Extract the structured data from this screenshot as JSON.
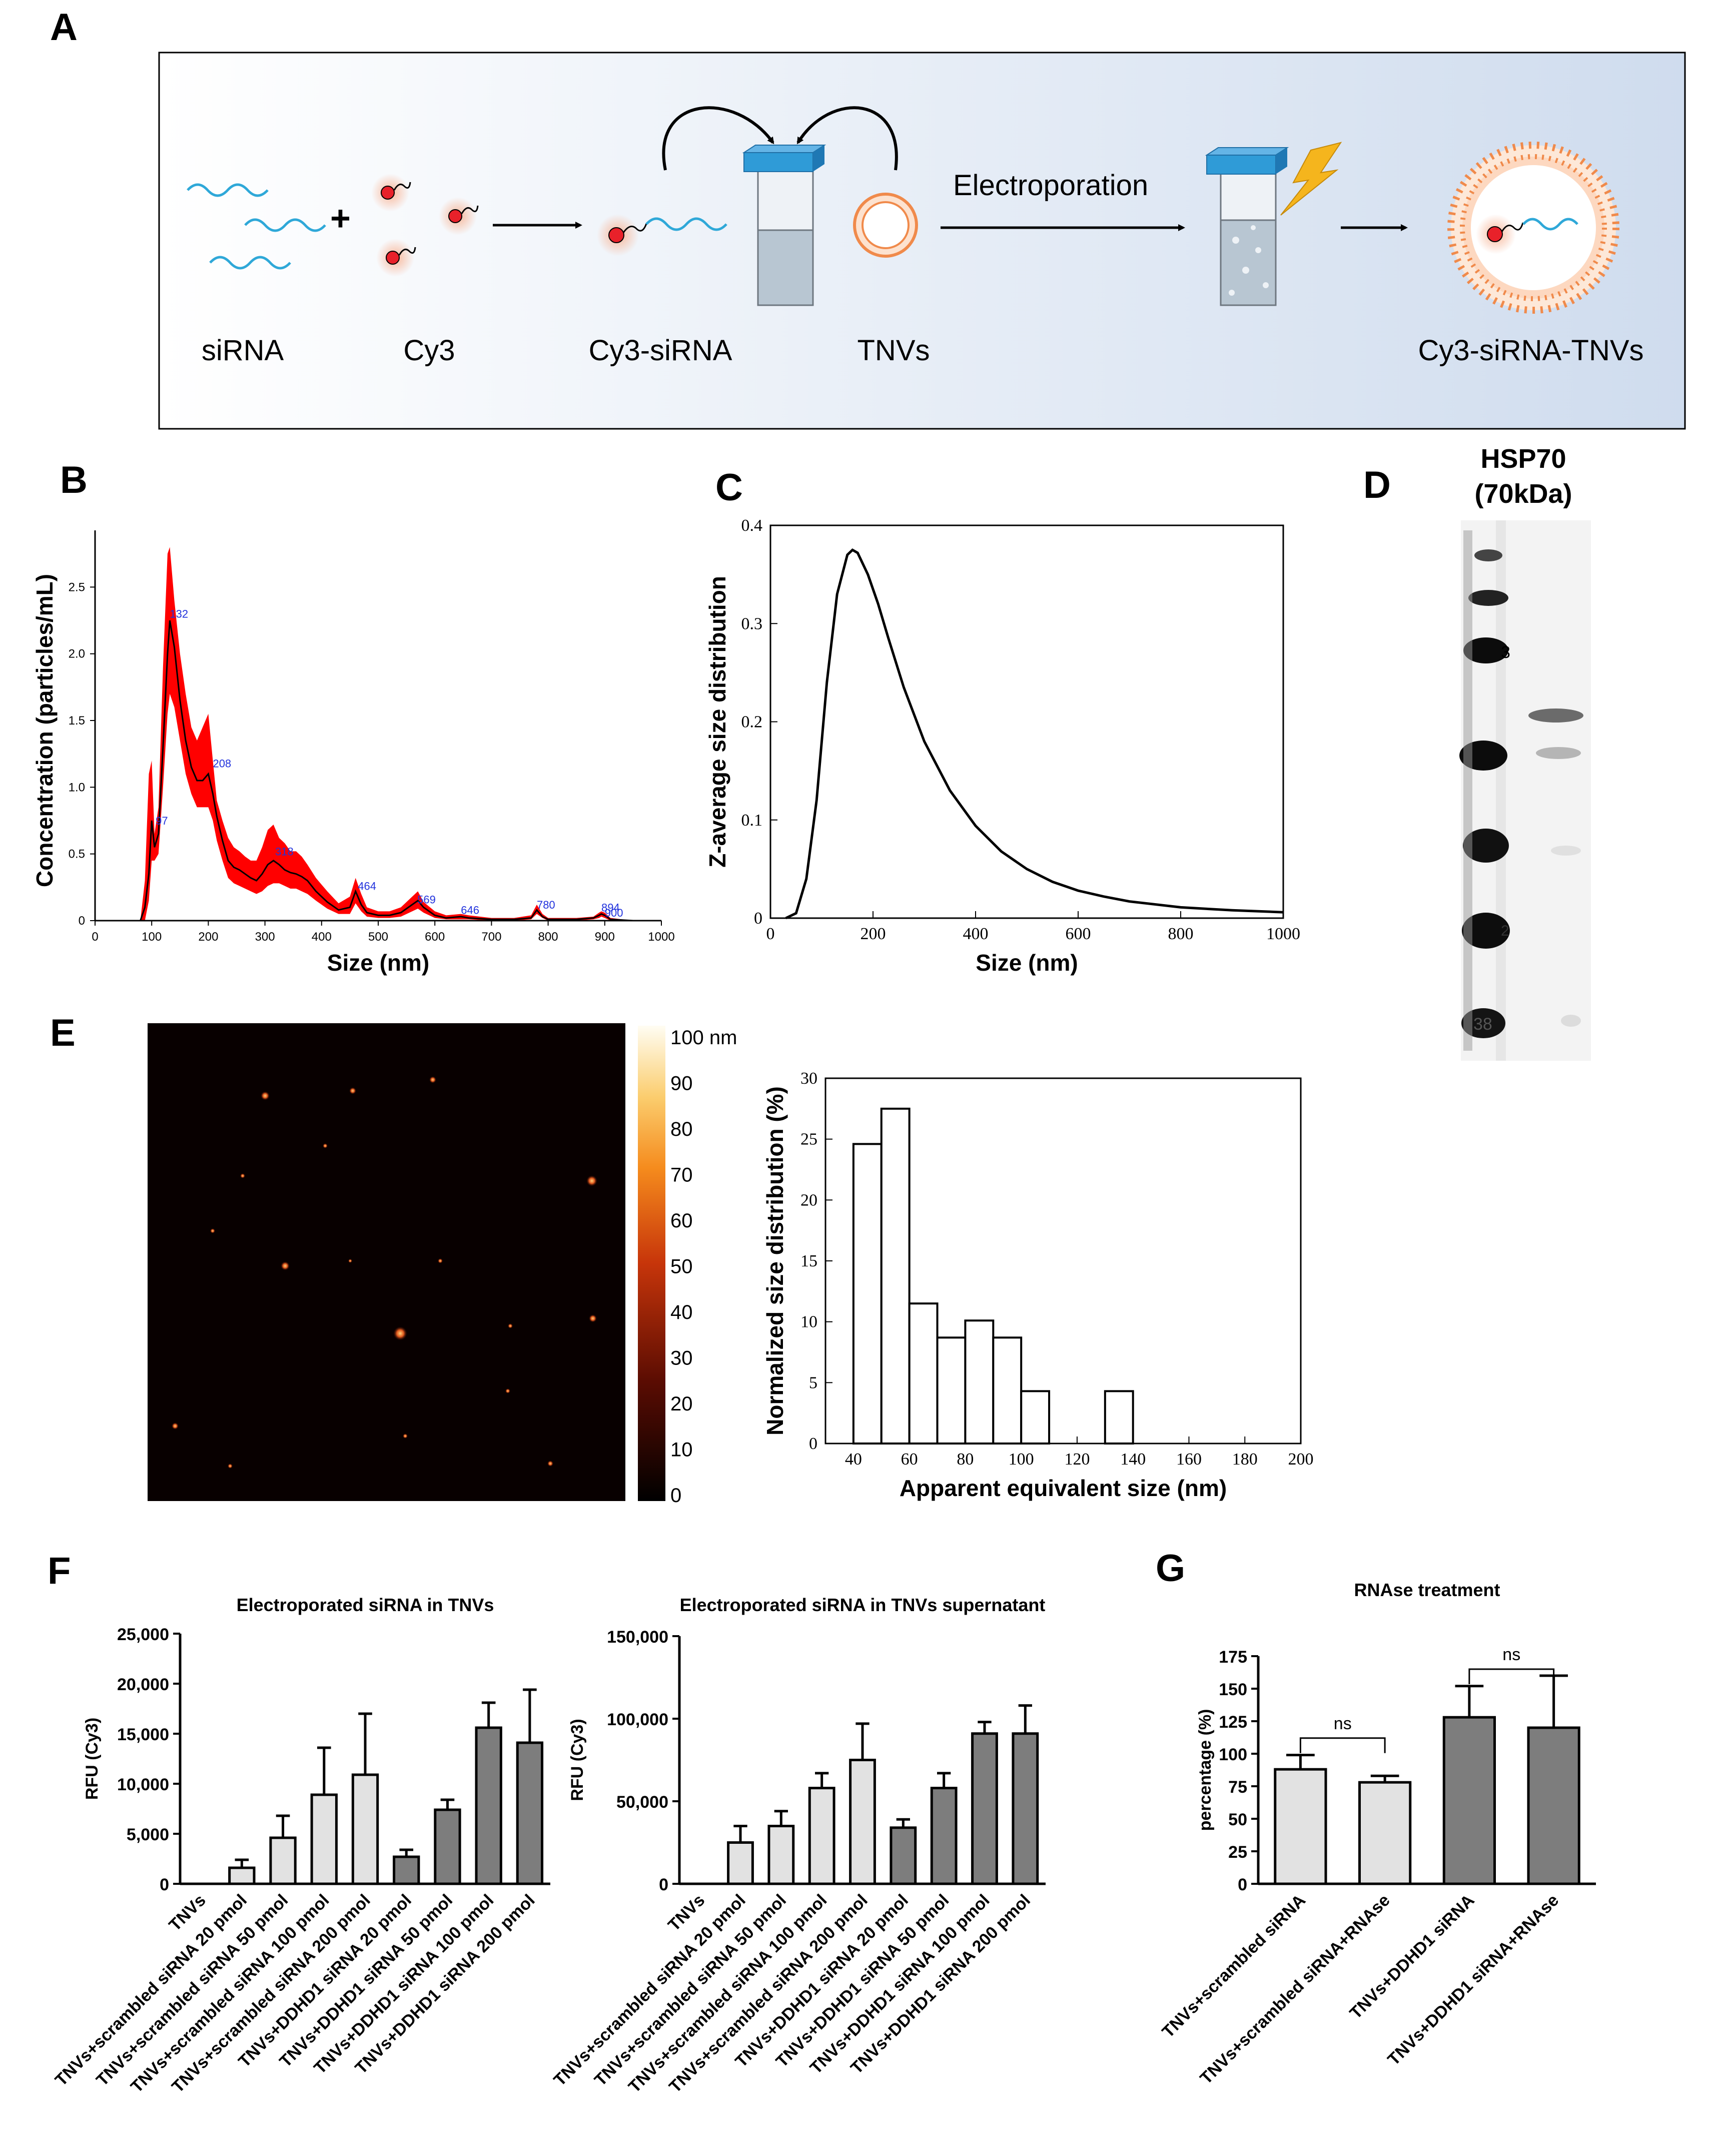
{
  "panels": {
    "A": "A",
    "B": "B",
    "C": "C",
    "D": "D",
    "E": "E",
    "F": "F",
    "G": "G"
  },
  "schematic": {
    "labels": [
      "siRNA",
      "Cy3",
      "Cy3-siRNA",
      "TNVs",
      "Cy3-siRNA-TNVs"
    ],
    "step_label": "Electroporation",
    "plus": "+",
    "colors": {
      "background_start": "#ffffff",
      "background_end": "#cfdcee",
      "siRNA": "#2fa8d8",
      "dye": "#e8212a",
      "glow": "#f7b79a",
      "cap": "#2f9bd7",
      "vesicle": "#f08a4b",
      "bolt": "#f5b51d"
    }
  },
  "western_blot": {
    "title": "HSP70",
    "subtitle": "(70kDa)",
    "ladder_marks": [
      "3",
      "2",
      "38"
    ]
  },
  "afm_colorbar": {
    "ticks": [
      "100 nm",
      "90",
      "80",
      "70",
      "60",
      "50",
      "40",
      "30",
      "20",
      "10",
      "0"
    ]
  },
  "chart_data": [
    {
      "id": "B",
      "type": "line",
      "xlabel": "Size (nm)",
      "ylabel": "Concentration (particles/mL)",
      "xlim": [
        0,
        1000
      ],
      "ylim": [
        0,
        2.85
      ],
      "xticks": [
        "0",
        "100",
        "200",
        "300",
        "400",
        "500",
        "600",
        "700",
        "800",
        "900",
        "1000"
      ],
      "yticks": [
        "0",
        "0.5",
        "1.0",
        "1.5",
        "2.0",
        "2.5"
      ],
      "series": [
        {
          "role": "mean",
          "color": "#000000",
          "x": [
            0,
            80,
            88,
            95,
            100,
            105,
            112,
            120,
            128,
            132,
            140,
            150,
            160,
            170,
            180,
            190,
            200,
            208,
            215,
            225,
            235,
            245,
            255,
            265,
            275,
            285,
            295,
            305,
            315,
            325,
            335,
            345,
            355,
            365,
            375,
            390,
            410,
            430,
            450,
            460,
            470,
            480,
            500,
            520,
            540,
            560,
            570,
            580,
            600,
            620,
            646,
            660,
            700,
            740,
            770,
            780,
            790,
            800,
            850,
            880,
            890,
            894,
            900,
            910,
            950,
            1000
          ],
          "y": [
            0,
            0,
            0.1,
            0.35,
            0.75,
            0.55,
            0.65,
            1.3,
            2.0,
            2.25,
            2.05,
            1.65,
            1.35,
            1.15,
            1.05,
            1.05,
            1.1,
            0.95,
            0.78,
            0.6,
            0.45,
            0.4,
            0.38,
            0.35,
            0.32,
            0.3,
            0.35,
            0.42,
            0.45,
            0.42,
            0.38,
            0.36,
            0.35,
            0.33,
            0.3,
            0.22,
            0.14,
            0.08,
            0.1,
            0.22,
            0.12,
            0.06,
            0.04,
            0.04,
            0.06,
            0.12,
            0.15,
            0.1,
            0.04,
            0.02,
            0.03,
            0.02,
            0.01,
            0.01,
            0.02,
            0.08,
            0.03,
            0.01,
            0.01,
            0.02,
            0.04,
            0.05,
            0.04,
            0.01,
            0.0,
            0.0
          ]
        },
        {
          "role": "upper",
          "color": "#ff0000",
          "x": [
            0,
            80,
            88,
            95,
            100,
            105,
            112,
            120,
            128,
            132,
            140,
            150,
            160,
            170,
            180,
            190,
            200,
            208,
            215,
            225,
            235,
            245,
            255,
            265,
            275,
            285,
            295,
            305,
            315,
            325,
            335,
            345,
            355,
            365,
            375,
            390,
            410,
            430,
            450,
            460,
            470,
            480,
            500,
            520,
            540,
            560,
            570,
            580,
            600,
            620,
            646,
            660,
            700,
            740,
            770,
            780,
            790,
            800,
            850,
            880,
            890,
            894,
            900,
            910,
            950,
            1000
          ],
          "y": [
            0,
            0,
            0.3,
            1.1,
            1.2,
            0.65,
            0.85,
            1.9,
            2.75,
            2.8,
            2.4,
            2.0,
            1.7,
            1.45,
            1.35,
            1.45,
            1.55,
            1.2,
            0.9,
            0.75,
            0.62,
            0.55,
            0.52,
            0.48,
            0.45,
            0.45,
            0.55,
            0.68,
            0.72,
            0.62,
            0.58,
            0.52,
            0.52,
            0.48,
            0.42,
            0.32,
            0.22,
            0.13,
            0.18,
            0.32,
            0.2,
            0.1,
            0.07,
            0.07,
            0.1,
            0.18,
            0.22,
            0.14,
            0.07,
            0.04,
            0.05,
            0.04,
            0.02,
            0.02,
            0.04,
            0.12,
            0.05,
            0.02,
            0.02,
            0.03,
            0.06,
            0.07,
            0.06,
            0.02,
            0.0,
            0.0
          ]
        },
        {
          "role": "lower",
          "color": "#ff0000",
          "x": [
            0,
            80,
            88,
            95,
            100,
            105,
            112,
            120,
            128,
            132,
            140,
            150,
            160,
            170,
            180,
            190,
            200,
            208,
            215,
            225,
            235,
            245,
            255,
            265,
            275,
            285,
            295,
            305,
            315,
            325,
            335,
            345,
            355,
            365,
            375,
            390,
            410,
            430,
            450,
            460,
            470,
            480,
            500,
            520,
            540,
            560,
            570,
            580,
            600,
            620,
            646,
            660,
            700,
            740,
            770,
            780,
            790,
            800,
            850,
            880,
            890,
            894,
            900,
            910,
            950,
            1000
          ],
          "y": [
            0,
            0,
            0.0,
            0.15,
            0.45,
            0.45,
            0.5,
            1.0,
            1.55,
            1.7,
            1.6,
            1.35,
            1.1,
            0.95,
            0.85,
            0.85,
            0.85,
            0.75,
            0.6,
            0.45,
            0.32,
            0.28,
            0.26,
            0.24,
            0.22,
            0.2,
            0.22,
            0.26,
            0.28,
            0.28,
            0.26,
            0.24,
            0.24,
            0.22,
            0.2,
            0.15,
            0.09,
            0.05,
            0.05,
            0.13,
            0.07,
            0.03,
            0.02,
            0.02,
            0.03,
            0.07,
            0.09,
            0.06,
            0.02,
            0.01,
            0.01,
            0.01,
            0.0,
            0.0,
            0.01,
            0.05,
            0.02,
            0.0,
            0.0,
            0.01,
            0.02,
            0.03,
            0.02,
            0.0,
            0.0,
            0.0
          ]
        }
      ],
      "annotations": [
        {
          "x": 107,
          "y": 0.72,
          "text": "97"
        },
        {
          "x": 132,
          "y": 2.27,
          "text": "132"
        },
        {
          "x": 208,
          "y": 1.15,
          "text": "208"
        },
        {
          "x": 318,
          "y": 0.49,
          "text": "318"
        },
        {
          "x": 464,
          "y": 0.23,
          "text": "464"
        },
        {
          "x": 569,
          "y": 0.13,
          "text": "569"
        },
        {
          "x": 646,
          "y": 0.05,
          "text": "646"
        },
        {
          "x": 780,
          "y": 0.09,
          "text": "780"
        },
        {
          "x": 894,
          "y": 0.07,
          "text": "894"
        },
        {
          "x": 900,
          "y": 0.03,
          "text": "900"
        }
      ]
    },
    {
      "id": "C",
      "type": "line",
      "xlabel": "Size (nm)",
      "ylabel": "Z-average size distribution",
      "xlim": [
        0,
        1000
      ],
      "ylim": [
        0,
        0.4
      ],
      "xticks": [
        "0",
        "200",
        "400",
        "600",
        "800",
        "1000"
      ],
      "yticks": [
        "0",
        "0.1",
        "0.2",
        "0.3",
        "0.4"
      ],
      "x": [
        30,
        50,
        70,
        90,
        110,
        130,
        150,
        160,
        170,
        190,
        210,
        230,
        260,
        300,
        350,
        400,
        450,
        500,
        550,
        600,
        650,
        700,
        800,
        900,
        1000
      ],
      "y": [
        0.0,
        0.005,
        0.04,
        0.12,
        0.24,
        0.33,
        0.37,
        0.375,
        0.372,
        0.35,
        0.32,
        0.285,
        0.235,
        0.18,
        0.13,
        0.094,
        0.068,
        0.05,
        0.037,
        0.028,
        0.022,
        0.017,
        0.011,
        0.008,
        0.006
      ]
    },
    {
      "id": "E-hist",
      "type": "bar",
      "xlabel": "Apparent equivalent size (nm)",
      "ylabel": "Normalized size distribution (%)",
      "xlim": [
        30,
        200
      ],
      "ylim": [
        0,
        30
      ],
      "xticks": [
        "40",
        "60",
        "80",
        "100",
        "120",
        "140",
        "160",
        "180",
        "200"
      ],
      "yticks": [
        "0",
        "5",
        "10",
        "15",
        "20",
        "25",
        "30"
      ],
      "bin_edges": [
        40,
        50,
        60,
        70,
        80,
        90,
        100,
        110,
        120,
        130,
        140
      ],
      "values": [
        24.6,
        27.5,
        11.5,
        8.7,
        10.1,
        8.7,
        4.3,
        0,
        0,
        4.3
      ]
    },
    {
      "id": "F-left",
      "type": "bar",
      "title": "Electroporated siRNA in TNVs",
      "ylabel": "RFU (Cy3)",
      "ylim": [
        0,
        25000
      ],
      "yticks": [
        "0",
        "5,000",
        "10,000",
        "15,000",
        "20,000",
        "25,000"
      ],
      "categories": [
        "TNVs",
        "TNVs+scrambled siRNA 20 pmol",
        "TNVs+scrambled siRNA 50 pmol",
        "TNVs+scrambled siRNA 100 pmol",
        "TNVs+scrambled siRNA  200 pmol",
        "TNVs+DDHD1 siRNA 20 pmol",
        "TNVs+DDHD1 siRNA 50 pmol",
        "TNVs+DDHD1 siRNA 100 pmol",
        "TNVs+DDHD1 siRNA  200 pmol"
      ],
      "values": [
        0,
        1600,
        4600,
        8900,
        10900,
        2700,
        7400,
        15600,
        14100
      ],
      "errors": [
        0,
        800,
        2200,
        4700,
        6100,
        700,
        1000,
        2500,
        5300
      ],
      "colors": [
        "#e2e2e2",
        "#e2e2e2",
        "#e2e2e2",
        "#e2e2e2",
        "#e2e2e2",
        "#7d7d7d",
        "#7d7d7d",
        "#7d7d7d",
        "#7d7d7d"
      ]
    },
    {
      "id": "F-right",
      "type": "bar",
      "title": "Electroporated siRNA in TNVs supernatant",
      "ylabel": "RFU (Cy3)",
      "ylim": [
        0,
        150000
      ],
      "yticks": [
        "0",
        "50,000",
        "100,000",
        "150,000"
      ],
      "categories": [
        "TNVs",
        "TNVs+scrambled siRNA 20 pmol",
        "TNVs+scrambled siRNA 50 pmol",
        "TNVs+scrambled siRNA 100 pmol",
        "TNVs+scrambled siRNA 200 pmol",
        "TNVs+DDHD1 siRNA 20 pmol",
        "TNVs+DDHD1 siRNA 50 pmol",
        "TNVs+DDHD1 siRNA 100 pmol",
        "TNVs+DDHD1 siRNA 200 pmol"
      ],
      "values": [
        0,
        25000,
        35000,
        58000,
        75000,
        34000,
        58000,
        91000,
        91000
      ],
      "errors": [
        0,
        10000,
        9000,
        9000,
        22000,
        5000,
        9000,
        7000,
        17000
      ],
      "colors": [
        "#e2e2e2",
        "#e2e2e2",
        "#e2e2e2",
        "#e2e2e2",
        "#e2e2e2",
        "#7d7d7d",
        "#7d7d7d",
        "#7d7d7d",
        "#7d7d7d"
      ]
    },
    {
      "id": "G",
      "type": "bar",
      "title": "RNAse treatment",
      "ylabel": "percentage (%)",
      "ylim": [
        0,
        175
      ],
      "yticks": [
        "0",
        "25",
        "50",
        "75",
        "100",
        "125",
        "150",
        "175"
      ],
      "categories": [
        "TNVs+scrambled siRNA",
        "TNVs+scrambled siRNA+RNAse",
        "TNVs+DDHD1 siRNA",
        "TNVs+DDHD1 siRNA+RNAse"
      ],
      "values": [
        88,
        78,
        128,
        120
      ],
      "errors": [
        11,
        5,
        24,
        40
      ],
      "colors": [
        "#e2e2e2",
        "#e2e2e2",
        "#7d7d7d",
        "#7d7d7d"
      ],
      "significance": [
        {
          "pair": [
            0,
            1
          ],
          "label": "ns"
        },
        {
          "pair": [
            2,
            3
          ],
          "label": "ns"
        }
      ]
    }
  ]
}
